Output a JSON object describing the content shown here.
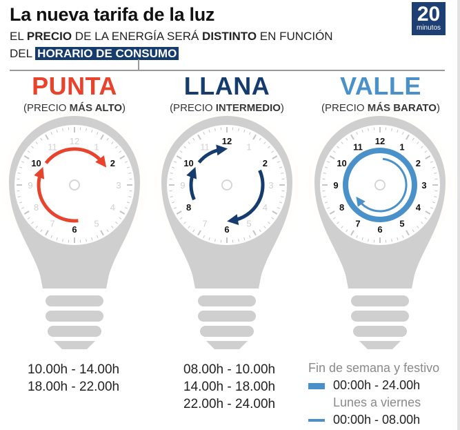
{
  "title": "La nueva tarifa de la luz",
  "subtitle": {
    "line1_a": "EL ",
    "line1_b": "PRECIO",
    "line1_c": " DE LA ENERGÍA SERÁ ",
    "line1_d": "DISTINTO",
    "line1_e": " EN FUNCIÓN",
    "line2_a": "DEL ",
    "line2_b": "HORARIO DE CONSUMO"
  },
  "logo": {
    "number": "20",
    "word": "minutos"
  },
  "colors": {
    "punta": "#e8432d",
    "llana": "#163c6e",
    "valle": "#4a90c9"
  },
  "columns": [
    {
      "name": "PUNTA",
      "sub_a": "(PRECIO ",
      "sub_b": "MÁS ALTO",
      "sub_c": ")",
      "clock_numbers_bold": [
        "10",
        "2",
        "6"
      ],
      "times": [
        "10.00h - 14.00h",
        "18.00h - 22.00h"
      ]
    },
    {
      "name": "LLANA",
      "sub_a": "(PRECIO ",
      "sub_b": "INTERMEDIO",
      "sub_c": ")",
      "clock_numbers_bold": [
        "12",
        "2",
        "6",
        "8",
        "10"
      ],
      "times": [
        "08.00h - 10.00h",
        "14.00h - 18.00h",
        "22.00h - 24.00h"
      ]
    },
    {
      "name": "VALLE",
      "sub_a": "(PRECIO ",
      "sub_b": "MÁS BARATO",
      "sub_c": ")",
      "clock_numbers_bold": [
        "12",
        "1",
        "2",
        "3",
        "4",
        "5",
        "6",
        "7",
        "8",
        "9",
        "10",
        "11"
      ],
      "legend": {
        "weekend_label": "Fin de semana y festivo",
        "weekend_range": "00:00h - 24.00h",
        "weekday_label": "Lunes a viernes",
        "weekday_range": "00:00h - 08.00h"
      }
    }
  ],
  "clock_face": [
    "12",
    "1",
    "2",
    "3",
    "4",
    "5",
    "6",
    "7",
    "8",
    "9",
    "10",
    "11"
  ]
}
